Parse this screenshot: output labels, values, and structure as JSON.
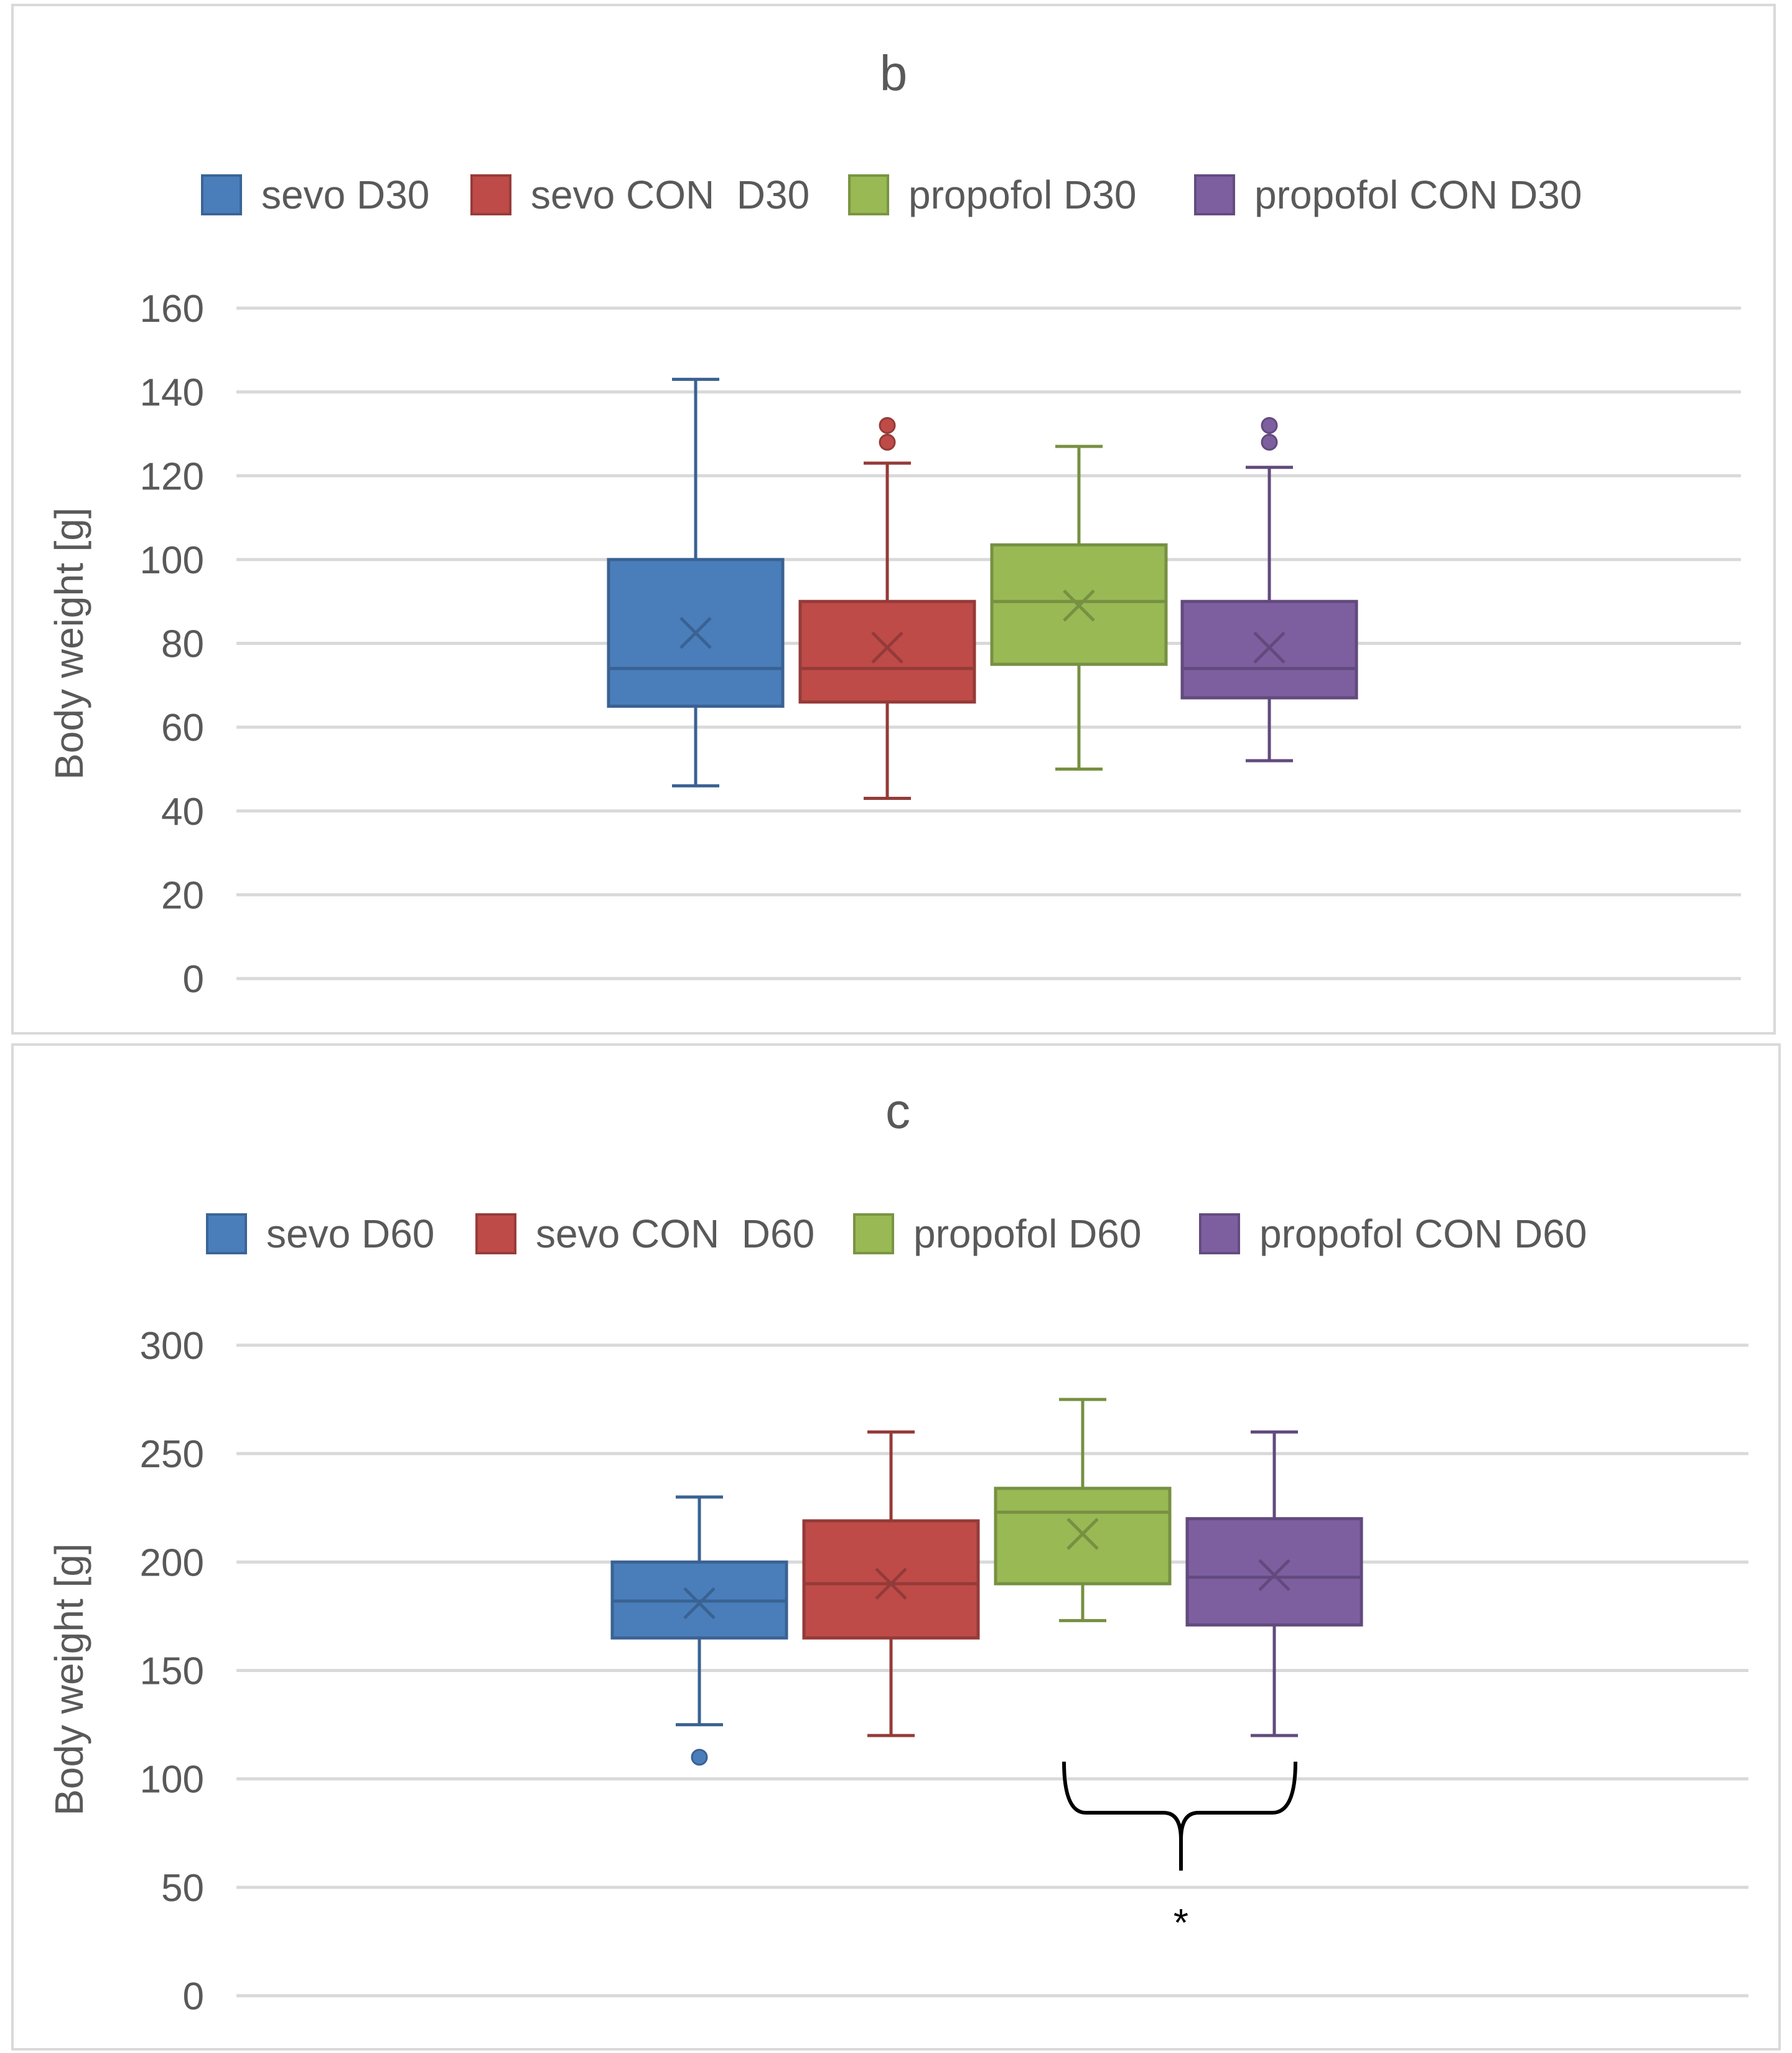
{
  "colors": {
    "sevo": "#4a7ebb",
    "sevo_con": "#be4b48",
    "propofol": "#98b954",
    "propofol_con": "#7d5fa0"
  },
  "chart_data": [
    {
      "type": "boxplot",
      "title": "b",
      "ylabel": "Body weight [g]",
      "ylim": [
        0,
        160
      ],
      "yticks": [
        0,
        20,
        40,
        60,
        80,
        100,
        120,
        140,
        160
      ],
      "grid": true,
      "legend_position": "top",
      "series": [
        {
          "name": "sevo D30",
          "color": "#4a7ebb",
          "min": 46,
          "q1": 65,
          "median": 74,
          "q3": 100,
          "max": 143,
          "mean": 82.5,
          "outliers": []
        },
        {
          "name": "sevo CON  D30",
          "color": "#be4b48",
          "min": 43,
          "q1": 66,
          "median": 74,
          "q3": 90,
          "max": 123,
          "mean": 79,
          "outliers": [
            128,
            132
          ]
        },
        {
          "name": "propofol D30",
          "color": "#98b954",
          "min": 50,
          "q1": 75,
          "median": 90,
          "q3": 103.5,
          "max": 127,
          "mean": 89,
          "outliers": []
        },
        {
          "name": "propofol CON D30",
          "color": "#7d5fa0",
          "min": 52,
          "q1": 67,
          "median": 74,
          "q3": 90,
          "max": 122,
          "mean": 79,
          "outliers": [
            128,
            132
          ]
        }
      ]
    },
    {
      "type": "boxplot",
      "title": "c",
      "ylabel": "Body weight  [g]",
      "ylim": [
        0,
        300
      ],
      "yticks": [
        0,
        50,
        100,
        150,
        200,
        250,
        300
      ],
      "grid": true,
      "legend_position": "top",
      "series": [
        {
          "name": "sevo D60",
          "color": "#4a7ebb",
          "min": 125,
          "q1": 165,
          "median": 182,
          "q3": 200,
          "max": 230,
          "mean": 181,
          "outliers": [
            110
          ]
        },
        {
          "name": "sevo CON  D60",
          "color": "#be4b48",
          "min": 120,
          "q1": 165,
          "median": 190,
          "q3": 219,
          "max": 260,
          "mean": 190,
          "outliers": []
        },
        {
          "name": "propofol D60",
          "color": "#98b954",
          "min": 173,
          "q1": 190,
          "median": 223,
          "q3": 234,
          "max": 275,
          "mean": 213,
          "outliers": []
        },
        {
          "name": "propofol CON D60",
          "color": "#7d5fa0",
          "min": 120,
          "q1": 171,
          "median": 193,
          "q3": 220,
          "max": 260,
          "mean": 194,
          "outliers": []
        }
      ],
      "annotation": {
        "text": "*",
        "between": [
          "propofol D60",
          "propofol CON D60"
        ]
      }
    }
  ]
}
